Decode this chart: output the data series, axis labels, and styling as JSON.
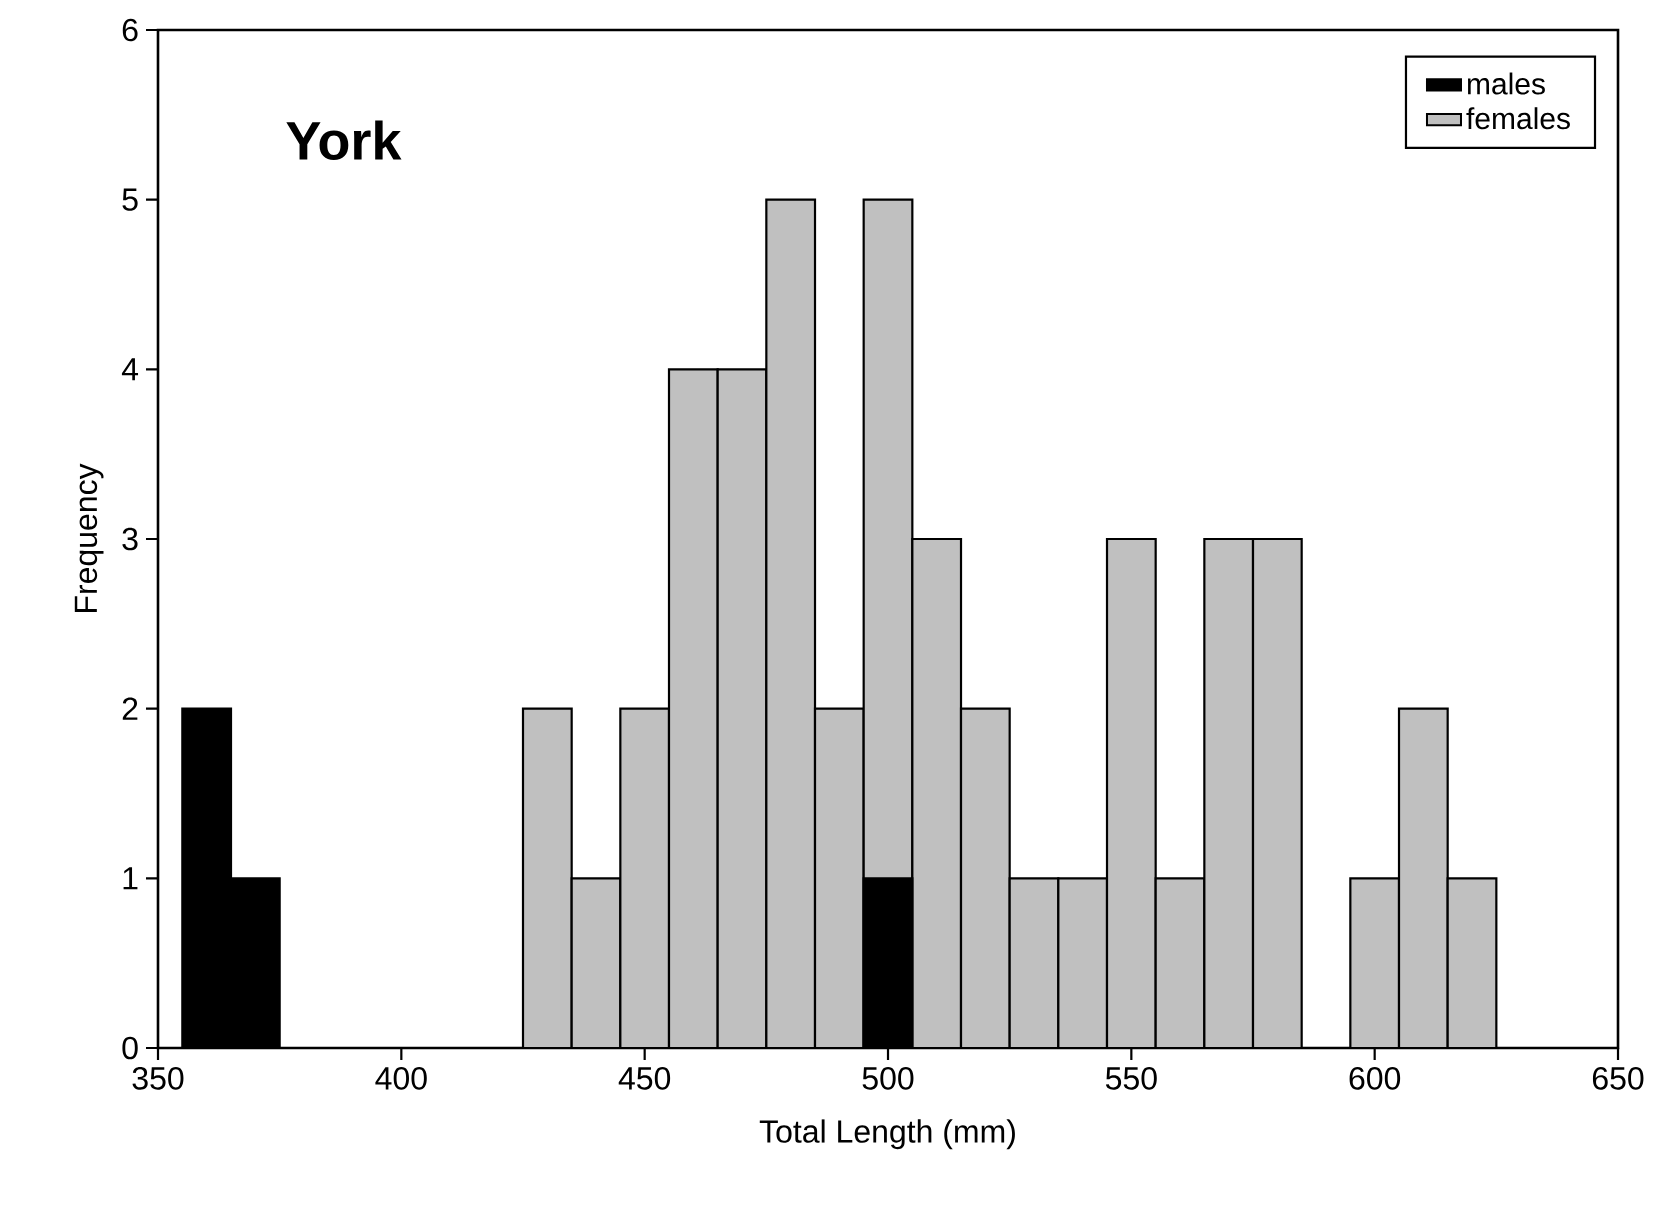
{
  "chart_data": {
    "type": "histogram",
    "title": "York",
    "xlabel": "Total Length (mm)",
    "ylabel": "Frequency",
    "bins": [
      355,
      365,
      375,
      385,
      395,
      405,
      415,
      425,
      435,
      445,
      455,
      465,
      475,
      485,
      495,
      505,
      515,
      525,
      535,
      545,
      555,
      565,
      575,
      585,
      595,
      605,
      615,
      625
    ],
    "series": [
      {
        "name": "males",
        "color": "#000000",
        "values": [
          2,
          1,
          0,
          0,
          0,
          0,
          0,
          0,
          0,
          0,
          0,
          0,
          0,
          0,
          1,
          0,
          0,
          0,
          0,
          0,
          0,
          0,
          0,
          0,
          0,
          0,
          0
        ]
      },
      {
        "name": "females",
        "color": "#c0c0c0",
        "values": [
          0,
          0,
          0,
          0,
          0,
          0,
          0,
          2,
          1,
          2,
          4,
          4,
          5,
          2,
          5,
          3,
          2,
          1,
          1,
          3,
          1,
          3,
          3,
          0,
          1,
          2,
          1
        ]
      }
    ],
    "xlim": [
      350,
      650
    ],
    "ylim": [
      0,
      6
    ],
    "xticks": [
      350,
      400,
      450,
      500,
      550,
      600,
      650
    ],
    "yticks": [
      0,
      1,
      2,
      3,
      4,
      5,
      6
    ],
    "legend": "top right",
    "grid": false
  }
}
